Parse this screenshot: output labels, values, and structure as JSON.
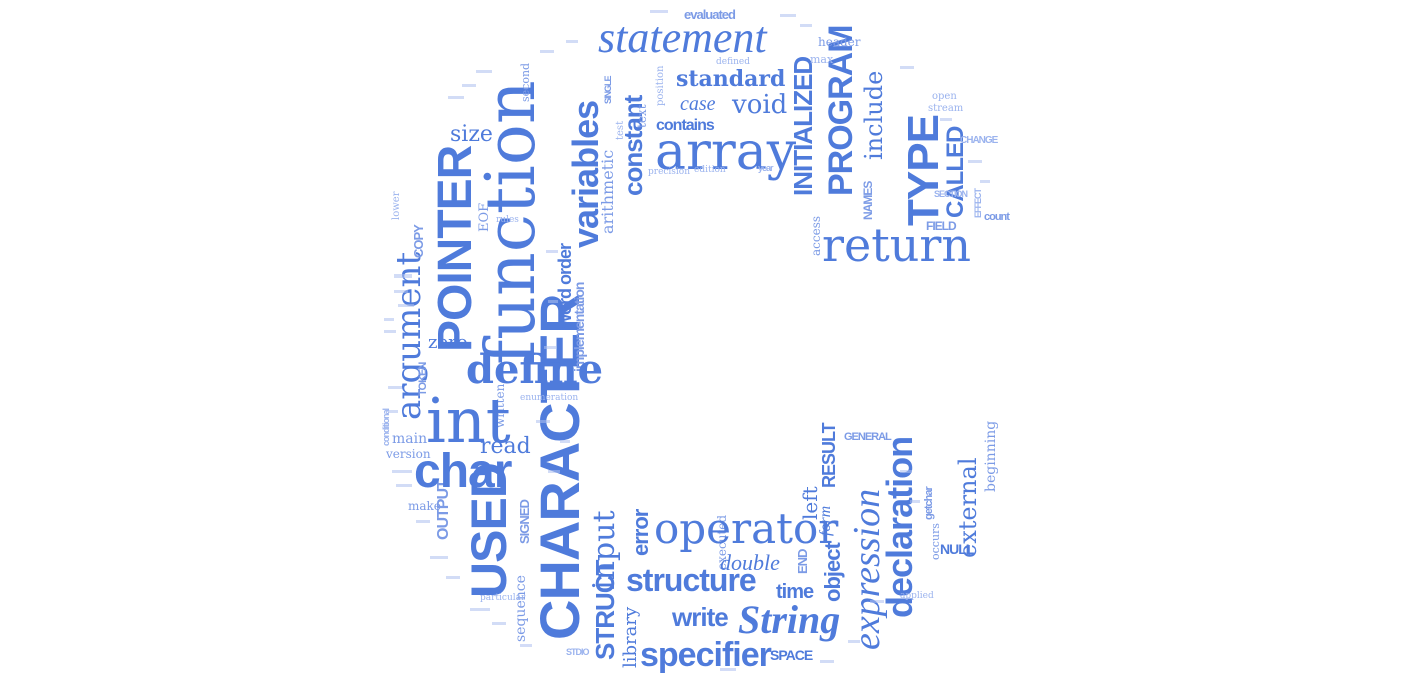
{
  "accent_color": "#4f7bdb",
  "words": {
    "function": "function",
    "pointer": "POINTER",
    "character": "CHARACTER",
    "statement": "statement",
    "array": "array",
    "return": "return",
    "variables": "variables",
    "program": "PROGRAM",
    "type": "TYPE",
    "initialized": "INITIALIZED",
    "define": "define",
    "int": "int",
    "char": "char",
    "used": "USED",
    "argument": "argument",
    "operator": "operator",
    "declaration": "declaration",
    "expression": "expression",
    "specifier": "specifier",
    "string": "String",
    "structure": "structure",
    "input": "input",
    "struct": "STRUCT",
    "constant": "constant",
    "standard": "standard",
    "void": "void",
    "include": "include",
    "called": "CALLED",
    "names": "NAMES",
    "contains": "contains",
    "case": "case",
    "evaluated": "evaluated",
    "header": "header",
    "size": "size",
    "copy": "COPY",
    "zero": "zero",
    "read": "read",
    "main": "main",
    "version": "version",
    "make": "make",
    "output": "OUTPUT",
    "sequence": "sequence",
    "library": "library",
    "write": "write",
    "space": "SPACE",
    "time": "time",
    "object": "object",
    "double": "double",
    "error": "error",
    "end": "END",
    "left": "left",
    "result": "RESULT",
    "general": "GENERAL",
    "external": "external",
    "null": "NULL",
    "beginning": "beginning",
    "word_order": "word order",
    "implementation": "implementation",
    "arithmetic": "arithmetic",
    "eof": "EOF",
    "token": "TOKEN",
    "written": "written",
    "signed": "SIGNED",
    "enumeration": "enumeration",
    "field": "FIELD",
    "count": "count",
    "change": "CHANGE",
    "section": "SECTION",
    "access": "access",
    "getchar": "getchar",
    "executed": "executed",
    "form": "form",
    "text": "text",
    "single": "SINGLE",
    "stream": "stream",
    "open": "open",
    "max": "max",
    "conditional": "conditional",
    "stdio": "STDIO",
    "particular": "particular",
    "occurs": "occurs",
    "applied": "applied",
    "rules": "rules",
    "lower": "lower",
    "effect": "EFFECT",
    "second": "second",
    "defined": "defined",
    "position": "position",
    "edition": "edition",
    "precision": "precision",
    "test": "test",
    "year": "year"
  }
}
